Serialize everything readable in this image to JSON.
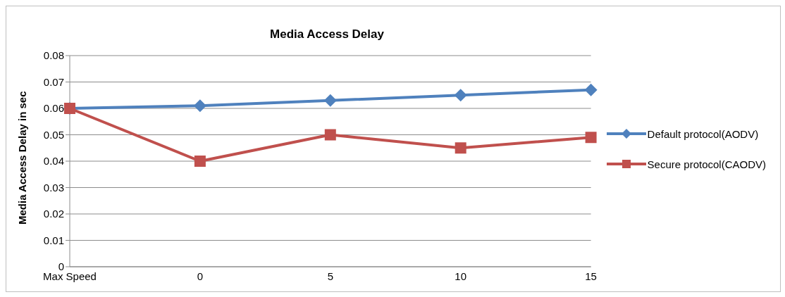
{
  "chart_data": {
    "type": "line",
    "title": "Media Access Delay",
    "ylabel": "Media Access Delay in sec",
    "categories": [
      "Max Speed",
      "0",
      "5",
      "10",
      "15"
    ],
    "series": [
      {
        "name": "Default protocol(AODV)",
        "color": "#4f81bd",
        "marker": "diamond",
        "values": [
          0.06,
          0.061,
          0.063,
          0.065,
          0.067
        ]
      },
      {
        "name": "Secure protocol(CAODV)",
        "color": "#c0504d",
        "marker": "square",
        "values": [
          0.06,
          0.04,
          0.05,
          0.045,
          0.049
        ]
      }
    ],
    "ylim": [
      0,
      0.08
    ],
    "yticks": [
      0,
      0.01,
      0.02,
      0.03,
      0.04,
      0.05,
      0.06,
      0.07,
      0.08
    ],
    "grid": "y",
    "legend": "right"
  }
}
